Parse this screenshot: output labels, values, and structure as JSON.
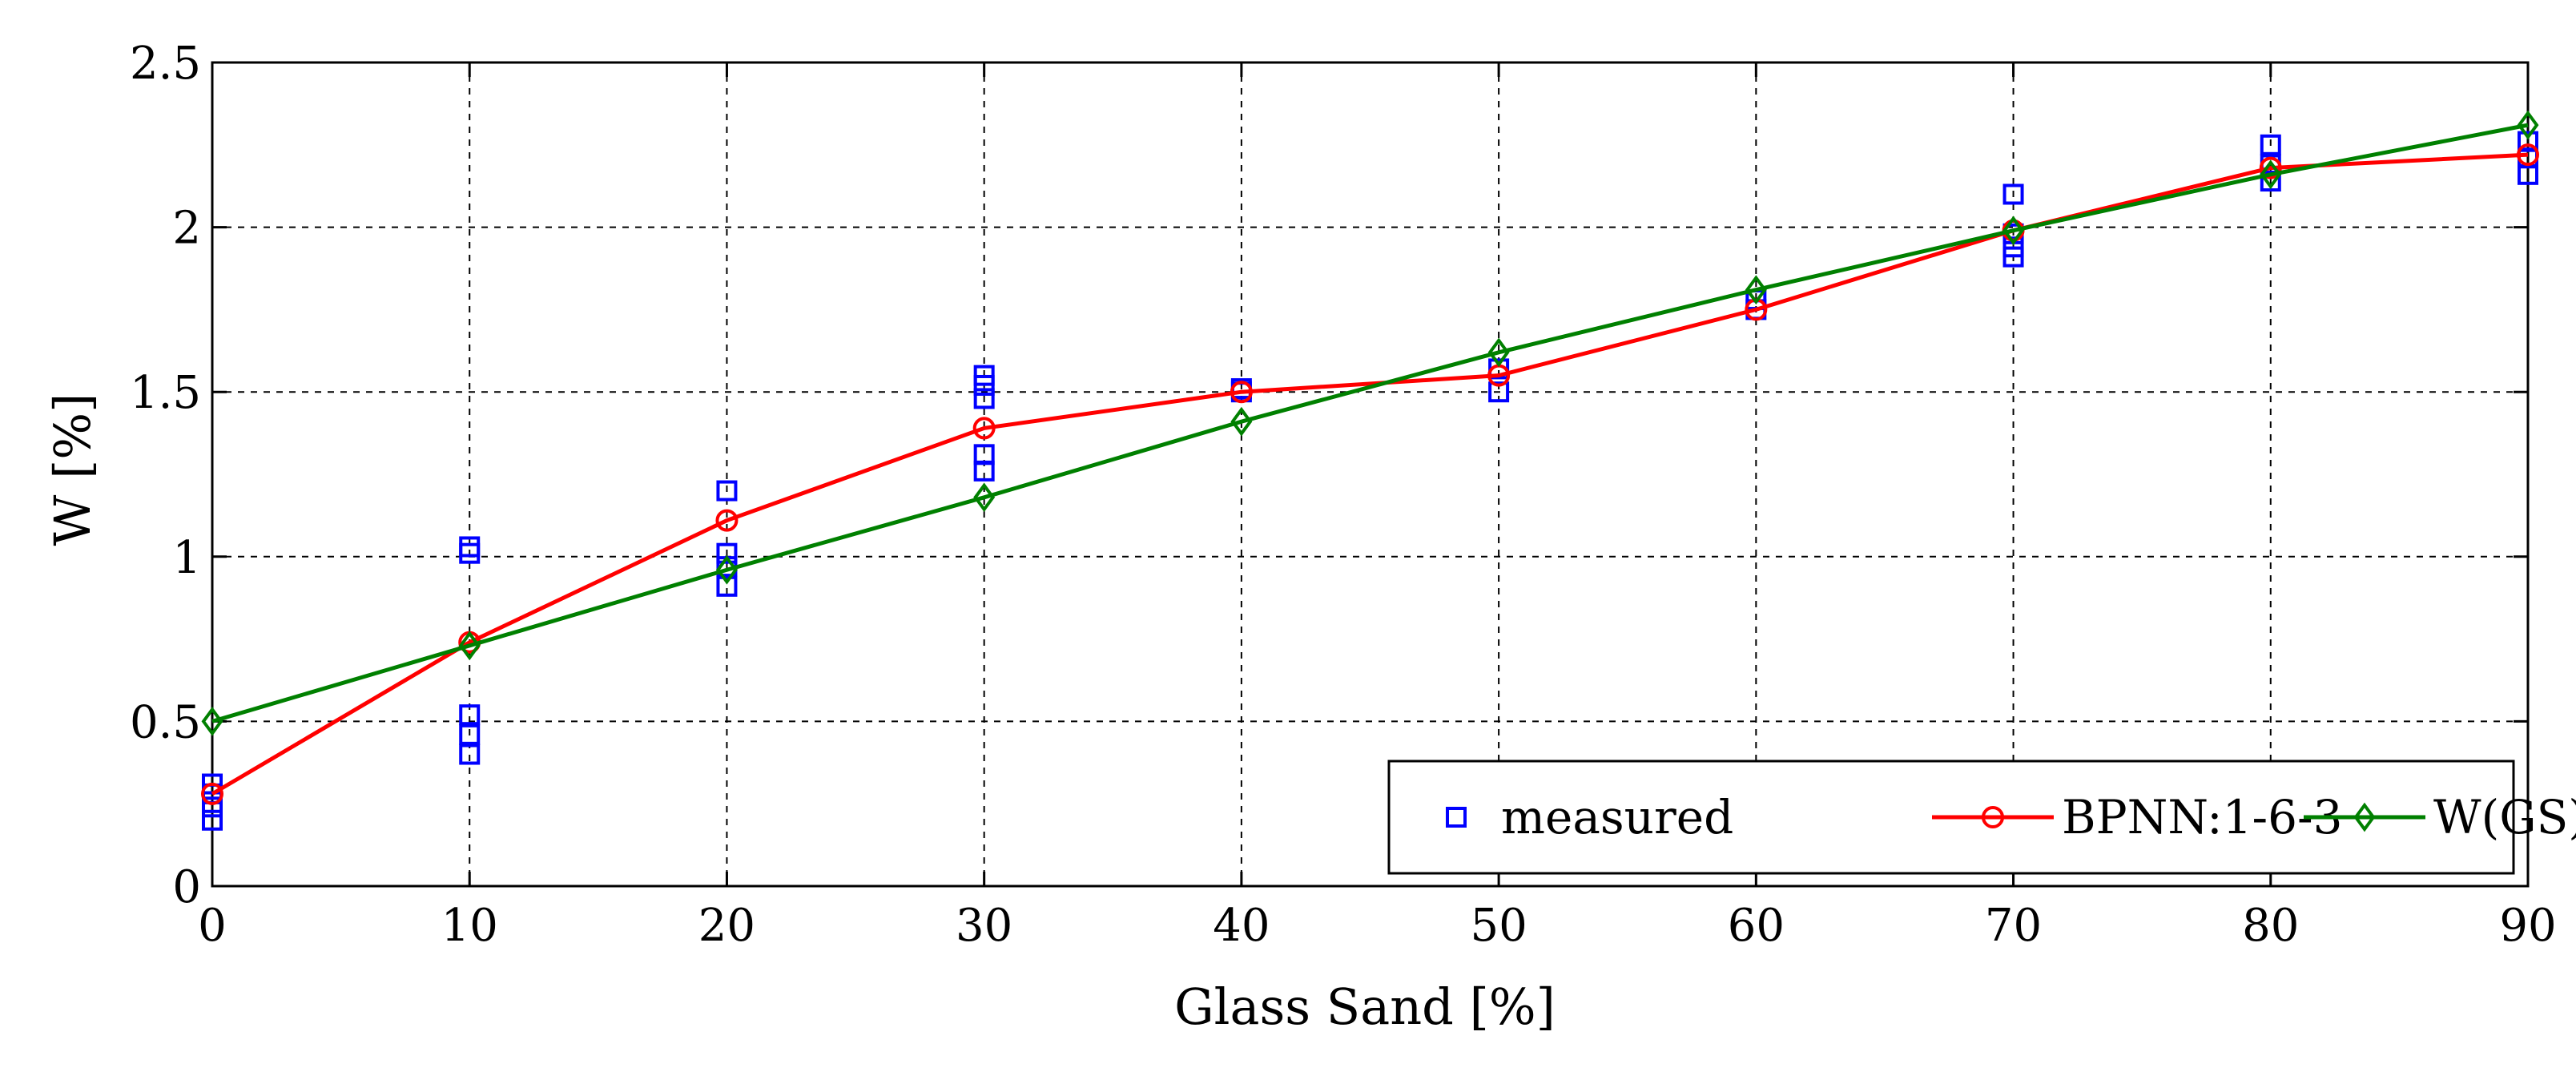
{
  "chart_data": {
    "type": "line",
    "title": "",
    "xlabel": "Glass Sand [%]",
    "ylabel": "W [%]",
    "xlim": [
      0,
      90
    ],
    "ylim": [
      0,
      2.5
    ],
    "xticks": [
      "0",
      "10",
      "20",
      "30",
      "40",
      "50",
      "60",
      "70",
      "80",
      "90"
    ],
    "yticks": [
      "0",
      "0.5",
      "1",
      "1.5",
      "2",
      "2.5"
    ],
    "grid": true,
    "legend_position": "bottom-right",
    "legend_orientation": "horizontal",
    "series": [
      {
        "name": "measured",
        "kind": "scatter",
        "marker": "square",
        "color": "#0000ff",
        "points": [
          [
            0,
            0.2
          ],
          [
            0,
            0.24
          ],
          [
            0,
            0.28
          ],
          [
            0,
            0.31
          ],
          [
            10,
            0.4
          ],
          [
            10,
            0.46
          ],
          [
            10,
            0.52
          ],
          [
            10,
            1.01
          ],
          [
            10,
            1.03
          ],
          [
            20,
            0.91
          ],
          [
            20,
            0.97
          ],
          [
            20,
            1.01
          ],
          [
            20,
            1.2
          ],
          [
            30,
            1.26
          ],
          [
            30,
            1.31
          ],
          [
            30,
            1.48
          ],
          [
            30,
            1.52
          ],
          [
            30,
            1.55
          ],
          [
            40,
            1.5
          ],
          [
            40,
            1.51
          ],
          [
            50,
            1.5
          ],
          [
            50,
            1.57
          ],
          [
            60,
            1.75
          ],
          [
            60,
            1.78
          ],
          [
            70,
            1.91
          ],
          [
            70,
            1.94
          ],
          [
            70,
            1.98
          ],
          [
            70,
            2.1
          ],
          [
            80,
            2.14
          ],
          [
            80,
            2.19
          ],
          [
            80,
            2.25
          ],
          [
            90,
            2.16
          ],
          [
            90,
            2.21
          ],
          [
            90,
            2.26
          ]
        ]
      },
      {
        "name": "BPNN:1-6-3",
        "kind": "line",
        "marker": "circle",
        "color": "#ff0000",
        "x": [
          0,
          10,
          20,
          30,
          40,
          50,
          60,
          70,
          80,
          90
        ],
        "y": [
          0.28,
          0.74,
          1.11,
          1.39,
          1.5,
          1.55,
          1.75,
          1.99,
          2.18,
          2.22
        ]
      },
      {
        "name": "W(GS)",
        "kind": "line",
        "marker": "diamond",
        "color": "#008000",
        "x": [
          0,
          10,
          20,
          30,
          40,
          50,
          60,
          70,
          80,
          90
        ],
        "y": [
          0.5,
          0.73,
          0.96,
          1.18,
          1.41,
          1.62,
          1.81,
          1.99,
          2.16,
          2.31
        ]
      }
    ]
  }
}
